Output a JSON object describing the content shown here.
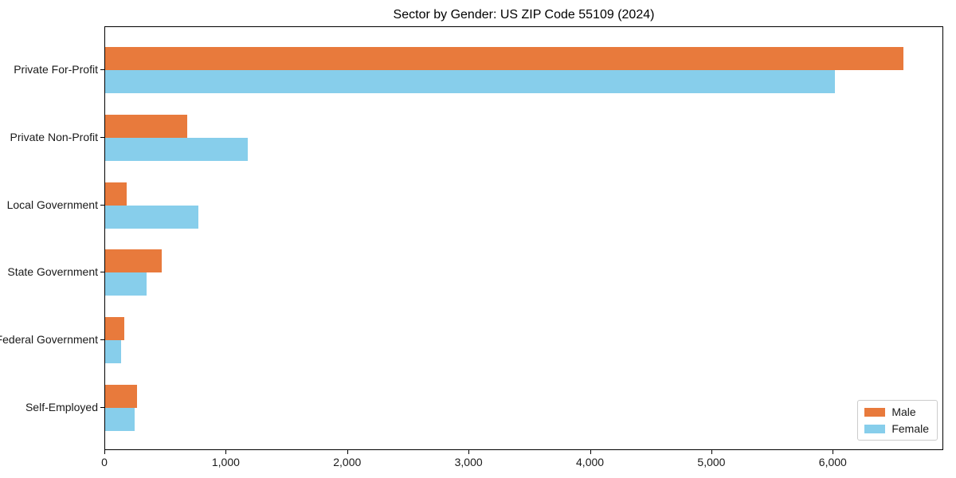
{
  "title": "Sector by Gender: US ZIP Code 55109 (2024)",
  "colors": {
    "male": "#E87A3C",
    "female": "#87CEEB",
    "axis": "#000000",
    "text": "#1a1a1a",
    "legend_border": "#cccccc"
  },
  "legend": {
    "position": "lower right",
    "items": [
      {
        "label": "Male",
        "color": "#E87A3C"
      },
      {
        "label": "Female",
        "color": "#87CEEB"
      }
    ]
  },
  "chart_data": {
    "type": "bar",
    "orientation": "horizontal",
    "title": "Sector by Gender: US ZIP Code 55109 (2024)",
    "categories": [
      "Private For-Profit",
      "Private Non-Profit",
      "Local Government",
      "State Government",
      "Federal Government",
      "Self-Employed"
    ],
    "series": [
      {
        "name": "Male",
        "color": "#E87A3C",
        "values": [
          6590,
          675,
          175,
          470,
          155,
          265
        ]
      },
      {
        "name": "Female",
        "color": "#87CEEB",
        "values": [
          6020,
          1180,
          770,
          340,
          130,
          240
        ]
      }
    ],
    "xlabel": "",
    "ylabel": "",
    "xlim": [
      0,
      6910
    ],
    "xticks": [
      0,
      1000,
      2000,
      3000,
      4000,
      5000,
      6000
    ],
    "xtick_labels": [
      "0",
      "1,000",
      "2,000",
      "3,000",
      "4,000",
      "5,000",
      "6,000"
    ],
    "grid": false,
    "legend_position": "lower right"
  }
}
